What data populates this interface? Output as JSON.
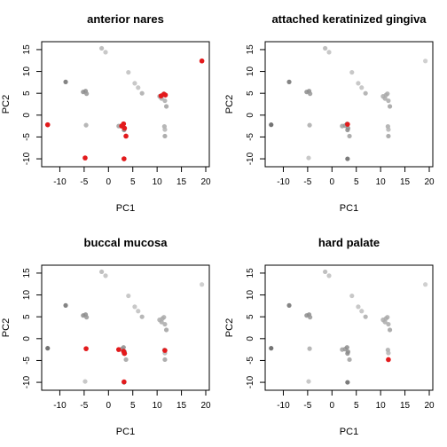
{
  "chart_data": [
    {
      "type": "scatter",
      "title": "anterior nares",
      "xlabel": "PC1",
      "ylabel": "PC2",
      "xlim": [
        -13,
        20
      ],
      "ylim": [
        -11,
        16
      ],
      "xticks": [
        -10,
        -5,
        0,
        5,
        10,
        15,
        20
      ],
      "yticks": [
        -10,
        -5,
        0,
        5,
        10,
        15
      ],
      "highlight_color": "#e31a1c",
      "background_points_ref": "shared_background",
      "highlighted": [
        {
          "x": -12.5,
          "y": -2.2
        },
        {
          "x": -4.8,
          "y": -9.8
        },
        {
          "x": 2.7,
          "y": -2.5
        },
        {
          "x": 3.1,
          "y": -2.0
        },
        {
          "x": 3.3,
          "y": -3.0
        },
        {
          "x": 3.6,
          "y": -4.8
        },
        {
          "x": 3.2,
          "y": -10.0
        },
        {
          "x": 10.8,
          "y": 4.4
        },
        {
          "x": 11.4,
          "y": 4.8
        },
        {
          "x": 11.7,
          "y": 4.6
        },
        {
          "x": 19.2,
          "y": 12.4
        }
      ]
    },
    {
      "type": "scatter",
      "title": "attached keratinized gingiva",
      "xlabel": "PC1",
      "ylabel": "PC2",
      "xlim": [
        -13,
        20
      ],
      "ylim": [
        -11,
        16
      ],
      "xticks": [
        -10,
        -5,
        0,
        5,
        10,
        15,
        20
      ],
      "yticks": [
        -10,
        -5,
        0,
        5,
        10,
        15
      ],
      "highlight_color": "#e31a1c",
      "background_points_ref": "shared_background",
      "highlighted": [
        {
          "x": 3.2,
          "y": -2.1
        }
      ]
    },
    {
      "type": "scatter",
      "title": "buccal mucosa",
      "xlabel": "PC1",
      "ylabel": "PC2",
      "xlim": [
        -13,
        20
      ],
      "ylim": [
        -11,
        16
      ],
      "xticks": [
        -10,
        -5,
        0,
        5,
        10,
        15,
        20
      ],
      "yticks": [
        -10,
        -5,
        0,
        5,
        10,
        15
      ],
      "highlight_color": "#e31a1c",
      "background_points_ref": "shared_background",
      "highlighted": [
        {
          "x": -4.6,
          "y": -2.3
        },
        {
          "x": 2.1,
          "y": -2.5
        },
        {
          "x": 3.1,
          "y": -2.9
        },
        {
          "x": 3.3,
          "y": -3.4
        },
        {
          "x": 11.6,
          "y": -2.7
        },
        {
          "x": 3.2,
          "y": -9.9
        }
      ]
    },
    {
      "type": "scatter",
      "title": "hard palate",
      "xlabel": "PC1",
      "ylabel": "PC2",
      "xlim": [
        -13,
        20
      ],
      "ylim": [
        -11,
        16
      ],
      "xticks": [
        -10,
        -5,
        0,
        5,
        10,
        15,
        20
      ],
      "yticks": [
        -10,
        -5,
        0,
        5,
        10,
        15
      ],
      "highlight_color": "#e31a1c",
      "background_points_ref": "shared_background",
      "highlighted": [
        {
          "x": 11.6,
          "y": -4.8
        }
      ]
    }
  ],
  "shared_background": [
    {
      "x": -12.5,
      "y": -2.2,
      "shade": 0.35
    },
    {
      "x": -8.8,
      "y": 7.6,
      "shade": 0.45
    },
    {
      "x": -5.2,
      "y": 5.3,
      "shade": 0.6
    },
    {
      "x": -4.7,
      "y": 5.5,
      "shade": 0.6
    },
    {
      "x": -4.5,
      "y": 4.9,
      "shade": 0.65
    },
    {
      "x": -4.6,
      "y": -2.3,
      "shade": 0.75
    },
    {
      "x": -4.8,
      "y": -9.8,
      "shade": 0.85
    },
    {
      "x": -1.4,
      "y": 15.3,
      "shade": 0.8
    },
    {
      "x": -0.6,
      "y": 14.4,
      "shade": 0.85
    },
    {
      "x": 2.1,
      "y": -2.5,
      "shade": 0.7
    },
    {
      "x": 2.7,
      "y": -2.4,
      "shade": 0.65
    },
    {
      "x": 3.1,
      "y": -2.0,
      "shade": 0.6
    },
    {
      "x": 3.3,
      "y": -3.0,
      "shade": 0.6
    },
    {
      "x": 3.2,
      "y": -3.4,
      "shade": 0.6
    },
    {
      "x": 3.6,
      "y": -4.8,
      "shade": 0.7
    },
    {
      "x": 3.2,
      "y": -10.0,
      "shade": 0.4
    },
    {
      "x": 4.1,
      "y": 9.8,
      "shade": 0.85
    },
    {
      "x": 5.4,
      "y": 7.3,
      "shade": 0.85
    },
    {
      "x": 6.1,
      "y": 6.3,
      "shade": 0.85
    },
    {
      "x": 6.9,
      "y": 5.0,
      "shade": 0.75
    },
    {
      "x": 10.5,
      "y": 4.3,
      "shade": 0.75
    },
    {
      "x": 10.9,
      "y": 3.8,
      "shade": 0.75
    },
    {
      "x": 11.1,
      "y": 4.6,
      "shade": 0.75
    },
    {
      "x": 11.4,
      "y": 4.9,
      "shade": 0.75
    },
    {
      "x": 11.6,
      "y": 3.3,
      "shade": 0.75
    },
    {
      "x": 11.9,
      "y": 2.0,
      "shade": 0.7
    },
    {
      "x": 11.5,
      "y": -2.6,
      "shade": 0.75
    },
    {
      "x": 11.6,
      "y": -3.3,
      "shade": 0.8
    },
    {
      "x": 11.6,
      "y": -4.8,
      "shade": 0.7
    },
    {
      "x": 19.2,
      "y": 12.4,
      "shade": 0.9
    }
  ]
}
